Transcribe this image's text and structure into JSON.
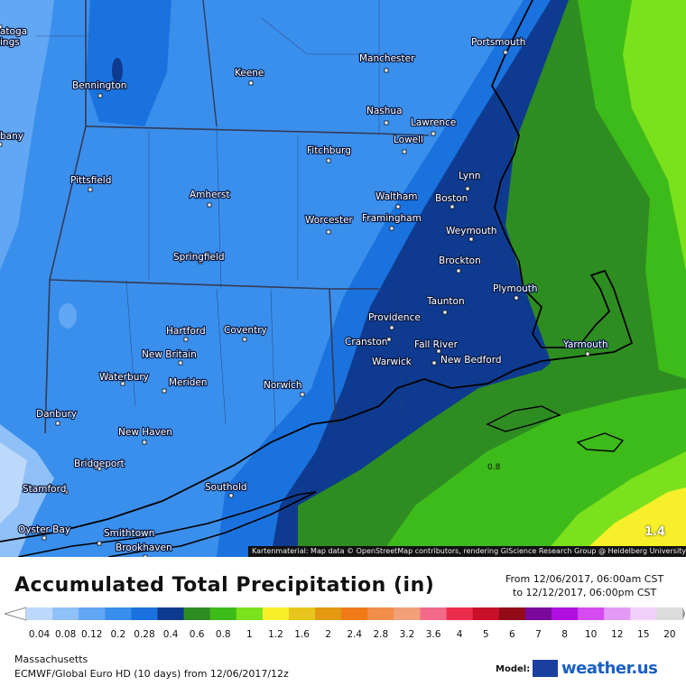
{
  "map": {
    "attribution": "Kartenmaterial: Map data © OpenStreetMap contributors, rendering GIScience Research Group @ Heidelberg University",
    "badge": "1.4",
    "isoline_label": "0.8",
    "cities": [
      {
        "name": "Saratoga Springs",
        "label": "atoga\nings"
      },
      {
        "name": "Bennington",
        "label": "Bennington"
      },
      {
        "name": "Keene",
        "label": "Keene"
      },
      {
        "name": "Manchester",
        "label": "Manchester"
      },
      {
        "name": "Portsmouth",
        "label": "Portsmouth"
      },
      {
        "name": "Nashua",
        "label": "Nashua"
      },
      {
        "name": "Lawrence",
        "label": "Lawrence"
      },
      {
        "name": "Lowell",
        "label": "Lowell"
      },
      {
        "name": "Albany",
        "label": "bany"
      },
      {
        "name": "Fitchburg",
        "label": "Fitchburg"
      },
      {
        "name": "Lynn",
        "label": "Lynn"
      },
      {
        "name": "Pittsfield",
        "label": "Pittsfield"
      },
      {
        "name": "Amherst",
        "label": "Amherst"
      },
      {
        "name": "Waltham",
        "label": "Waltham"
      },
      {
        "name": "Boston",
        "label": "Boston"
      },
      {
        "name": "Worcester",
        "label": "Worcester"
      },
      {
        "name": "Framingham",
        "label": "Framingham"
      },
      {
        "name": "Weymouth",
        "label": "Weymouth"
      },
      {
        "name": "Springfield",
        "label": "Springfield"
      },
      {
        "name": "Brockton",
        "label": "Brockton"
      },
      {
        "name": "Plymouth",
        "label": "Plymouth"
      },
      {
        "name": "Taunton",
        "label": "Taunton"
      },
      {
        "name": "Providence",
        "label": "Providence"
      },
      {
        "name": "Hartford",
        "label": "Hartford"
      },
      {
        "name": "Coventry",
        "label": "Coventry"
      },
      {
        "name": "Cranston",
        "label": "Cranston"
      },
      {
        "name": "Fall River",
        "label": "Fall River"
      },
      {
        "name": "Yarmouth",
        "label": "Yarmouth"
      },
      {
        "name": "New Britain",
        "label": "New Britain"
      },
      {
        "name": "Warwick",
        "label": "Warwick"
      },
      {
        "name": "New Bedford",
        "label": "New Bedford"
      },
      {
        "name": "Waterbury",
        "label": "Waterbury"
      },
      {
        "name": "Meriden",
        "label": "Meriden"
      },
      {
        "name": "Norwich",
        "label": "Norwich"
      },
      {
        "name": "Danbury",
        "label": "Danbury"
      },
      {
        "name": "New Haven",
        "label": "New Haven"
      },
      {
        "name": "Bridgeport",
        "label": "Bridgeport"
      },
      {
        "name": "Stamford",
        "label": "Stamford"
      },
      {
        "name": "Southold",
        "label": "Southold"
      },
      {
        "name": "Oyster Bay",
        "label": "Oyster Bay"
      },
      {
        "name": "Smithtown",
        "label": "Smithtown"
      },
      {
        "name": "Brookhaven",
        "label": "Brookhaven"
      }
    ]
  },
  "header": {
    "title": "Accumulated Total Precipitation (in)",
    "date_from": "From 12/06/2017, 06:00am CST",
    "date_to": "to 12/12/2017, 06:00pm CST"
  },
  "legend": {
    "values": [
      "0.04",
      "0.08",
      "0.12",
      "0.2",
      "0.28",
      "0.4",
      "0.6",
      "0.8",
      "1",
      "1.2",
      "1.6",
      "2",
      "2.4",
      "2.8",
      "3.2",
      "3.6",
      "4",
      "5",
      "6",
      "7",
      "8",
      "10",
      "12",
      "15",
      "20"
    ],
    "colors": [
      "#bcd8fb",
      "#8fc0f8",
      "#61a7f3",
      "#3a8fec",
      "#1a72de",
      "#0e3b8f",
      "#2e8d20",
      "#3dbb1a",
      "#7be11c",
      "#f6ef2a",
      "#e7c51c",
      "#e39a10",
      "#f07a18",
      "#f28e4c",
      "#f3a07a",
      "#f26a8a",
      "#ec2c4c",
      "#c8102a",
      "#930a19",
      "#7a0a9b",
      "#b10fe0",
      "#d54bf0",
      "#e39af5",
      "#f1cff8",
      "#dcdcdc"
    ]
  },
  "footer": {
    "region": "Massachusetts",
    "model_run": "ECMWF/Global Euro HD (10 days) from 12/06/2017/12z",
    "model_label": "Model:",
    "brand": "weather.us"
  }
}
